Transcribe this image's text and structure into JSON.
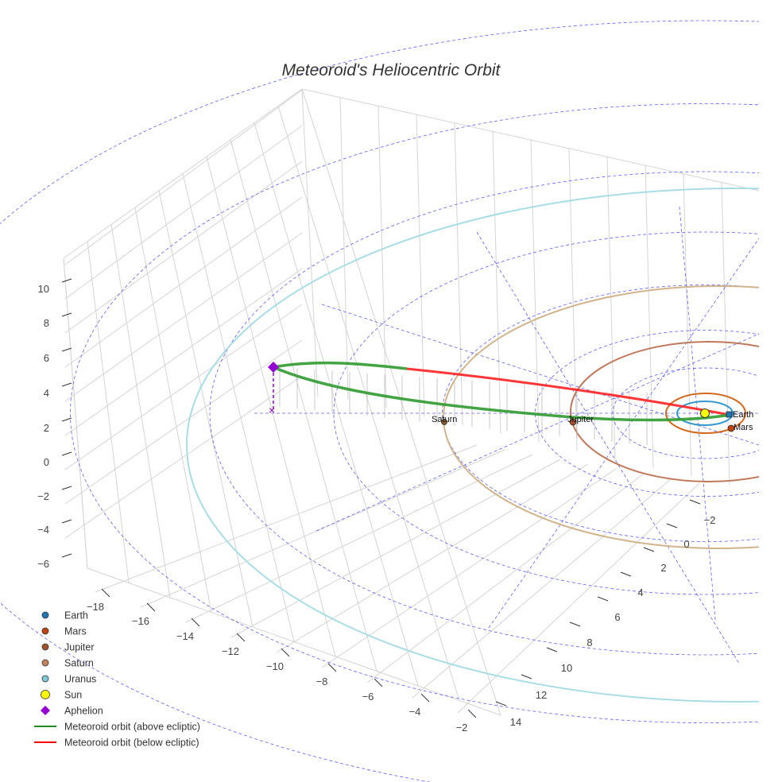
{
  "chart_data": {
    "type": "scatter3d",
    "title": "Meteoroid's Heliocentric Orbit",
    "axes": {
      "x": {
        "ticks": [
          "−18",
          "−16",
          "−14",
          "−12",
          "−10",
          "−8",
          "−6",
          "−4",
          "−2"
        ],
        "range": [
          -19,
          -1
        ]
      },
      "y": {
        "ticks": [
          "−2",
          "0",
          "2",
          "4",
          "6",
          "8",
          "10",
          "12",
          "14"
        ],
        "range": [
          -3,
          15
        ]
      },
      "z": {
        "ticks": [
          "10",
          "8",
          "6",
          "4",
          "2",
          "0",
          "−2",
          "−4",
          "−6"
        ],
        "range": [
          -7,
          11
        ]
      },
      "grid": true
    },
    "planet_labels": [
      "Earth",
      "Mars",
      "Jupiter",
      "Saturn"
    ],
    "legend": {
      "placement": "bottom-left",
      "entries": [
        {
          "name": "Earth",
          "color": "#1f77b4",
          "marker": "circle"
        },
        {
          "name": "Mars",
          "color": "#c1440e",
          "marker": "circle"
        },
        {
          "name": "Jupiter",
          "color": "#a0522d",
          "marker": "circle"
        },
        {
          "name": "Saturn",
          "color": "#c4835a",
          "marker": "circle"
        },
        {
          "name": "Uranus",
          "color": "#7ec8d8",
          "marker": "circle"
        },
        {
          "name": "Sun",
          "color": "#ffff00",
          "marker": "circle"
        },
        {
          "name": "Aphelion",
          "color": "#9400d3",
          "marker": "diamond"
        },
        {
          "name": "Meteoroid orbit (above ecliptic)",
          "color": "#228b22",
          "marker": "line"
        },
        {
          "name": "Meteoroid orbit (below ecliptic)",
          "color": "#ff0000",
          "marker": "line"
        }
      ]
    }
  }
}
